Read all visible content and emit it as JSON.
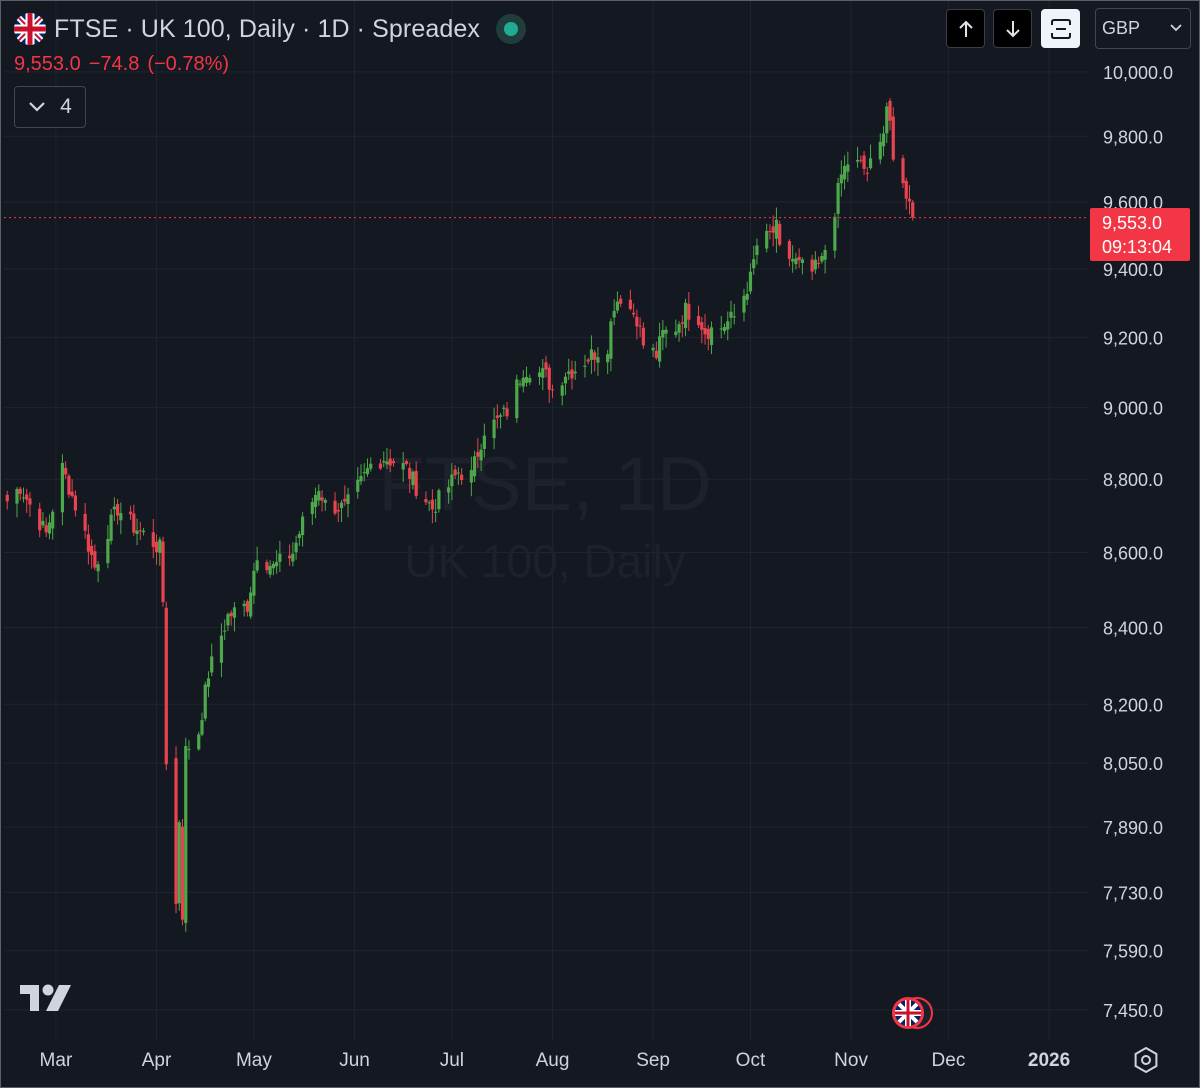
{
  "header": {
    "title": "FTSE · UK 100, Daily · 1D · Spreadex",
    "flag_icon": "uk-flag-icon",
    "status_icon": "market-open-dot-icon"
  },
  "quote": {
    "last": "9,553.0",
    "change": "−74.8",
    "change_pct": "(−0.78%)"
  },
  "indicators": {
    "count": "4",
    "icon": "chevron-down-icon"
  },
  "toolbar": {
    "buttons": [
      {
        "name": "arrow-up-icon"
      },
      {
        "name": "arrow-down-icon"
      },
      {
        "name": "fullscreen-icon"
      }
    ],
    "currency": "GBP"
  },
  "price_label": {
    "value": "9,553.0",
    "countdown": "09:13:04"
  },
  "watermark": {
    "line1": "FTSE, 1D",
    "line2": "UK 100, Daily"
  },
  "colors": {
    "up": "#4ca84a",
    "down": "#e8434f",
    "background": "#141821",
    "grid": "#1f2430",
    "price_line": "#f23645"
  },
  "chart_data": {
    "type": "candlestick",
    "y_axis": {
      "position": "right",
      "scale": "log",
      "tick_labels": [
        "10,000.0",
        "9,800.0",
        "9,600.0",
        "9,400.0",
        "9,200.0",
        "9,000.0",
        "8,800.0",
        "8,600.0",
        "8,400.0",
        "8,200.0",
        "8,050.0",
        "7,890.0",
        "7,730.0",
        "7,590.0",
        "7,450.0"
      ],
      "ticks": [
        10000,
        9800,
        9600,
        9400,
        9200,
        9000,
        8800,
        8600,
        8400,
        8200,
        8050,
        7890,
        7730,
        7590,
        7450
      ],
      "range": [
        7380,
        10050
      ]
    },
    "x_axis": {
      "tick_labels": [
        "Mar",
        "Apr",
        "May",
        "Jun",
        "Jul",
        "Aug",
        "Sep",
        "Oct",
        "Nov",
        "Dec",
        "2026"
      ],
      "bold_labels": [
        "2026"
      ],
      "range": [
        "2025-02-13",
        "2026-01-13"
      ]
    },
    "grid": true,
    "last_price": 9553.0,
    "anchors": [
      [
        "2025-02-14",
        8740
      ],
      [
        "2025-02-18",
        8780
      ],
      [
        "2025-02-21",
        8730
      ],
      [
        "2025-02-26",
        8650
      ],
      [
        "2025-03-03",
        8830
      ],
      [
        "2025-03-05",
        8780
      ],
      [
        "2025-03-10",
        8650
      ],
      [
        "2025-03-13",
        8560
      ],
      [
        "2025-03-17",
        8660
      ],
      [
        "2025-03-20",
        8720
      ],
      [
        "2025-03-25",
        8670
      ],
      [
        "2025-03-28",
        8650
      ],
      [
        "2025-04-02",
        8610
      ],
      [
        "2025-04-03",
        8470
      ],
      [
        "2025-04-04",
        8060
      ],
      [
        "2025-04-07",
        7700
      ],
      [
        "2025-04-08",
        7910
      ],
      [
        "2025-04-09",
        7680
      ],
      [
        "2025-04-10",
        8080
      ],
      [
        "2025-04-14",
        8130
      ],
      [
        "2025-04-17",
        8280
      ],
      [
        "2025-04-23",
        8430
      ],
      [
        "2025-04-29",
        8460
      ],
      [
        "2025-05-02",
        8600
      ],
      [
        "2025-05-07",
        8560
      ],
      [
        "2025-05-13",
        8600
      ],
      [
        "2025-05-16",
        8680
      ],
      [
        "2025-05-21",
        8780
      ],
      [
        "2025-05-23",
        8730
      ],
      [
        "2025-05-29",
        8720
      ],
      [
        "2025-06-03",
        8790
      ],
      [
        "2025-06-06",
        8840
      ],
      [
        "2025-06-10",
        8860
      ],
      [
        "2025-06-13",
        8850
      ],
      [
        "2025-06-17",
        8830
      ],
      [
        "2025-06-20",
        8780
      ],
      [
        "2025-06-25",
        8720
      ],
      [
        "2025-06-30",
        8780
      ],
      [
        "2025-07-03",
        8820
      ],
      [
        "2025-07-07",
        8810
      ],
      [
        "2025-07-11",
        8940
      ],
      [
        "2025-07-15",
        8960
      ],
      [
        "2025-07-18",
        8990
      ],
      [
        "2025-07-23",
        9110
      ],
      [
        "2025-07-25",
        9110
      ],
      [
        "2025-07-30",
        9090
      ],
      [
        "2025-08-01",
        9050
      ],
      [
        "2025-08-05",
        9100
      ],
      [
        "2025-08-08",
        9110
      ],
      [
        "2025-08-13",
        9150
      ],
      [
        "2025-08-18",
        9180
      ],
      [
        "2025-08-20",
        9300
      ],
      [
        "2025-08-22",
        9320
      ],
      [
        "2025-08-27",
        9260
      ],
      [
        "2025-08-29",
        9180
      ],
      [
        "2025-09-02",
        9150
      ],
      [
        "2025-09-04",
        9210
      ],
      [
        "2025-09-08",
        9230
      ],
      [
        "2025-09-11",
        9280
      ],
      [
        "2025-09-15",
        9260
      ],
      [
        "2025-09-17",
        9220
      ],
      [
        "2025-09-22",
        9230
      ],
      [
        "2025-09-26",
        9260
      ],
      [
        "2025-10-01",
        9370
      ],
      [
        "2025-10-03",
        9470
      ],
      [
        "2025-10-06",
        9490
      ],
      [
        "2025-10-09",
        9520
      ],
      [
        "2025-10-10",
        9450
      ],
      [
        "2025-10-14",
        9430
      ],
      [
        "2025-10-16",
        9410
      ],
      [
        "2025-10-20",
        9390
      ],
      [
        "2025-10-23",
        9420
      ],
      [
        "2025-10-27",
        9580
      ],
      [
        "2025-10-29",
        9680
      ],
      [
        "2025-10-31",
        9720
      ],
      [
        "2025-11-04",
        9710
      ],
      [
        "2025-11-06",
        9690
      ],
      [
        "2025-11-10",
        9770
      ],
      [
        "2025-11-12",
        9900
      ],
      [
        "2025-11-13",
        9850
      ],
      [
        "2025-11-14",
        9700
      ],
      [
        "2025-11-18",
        9630
      ],
      [
        "2025-11-20",
        9553
      ]
    ]
  }
}
